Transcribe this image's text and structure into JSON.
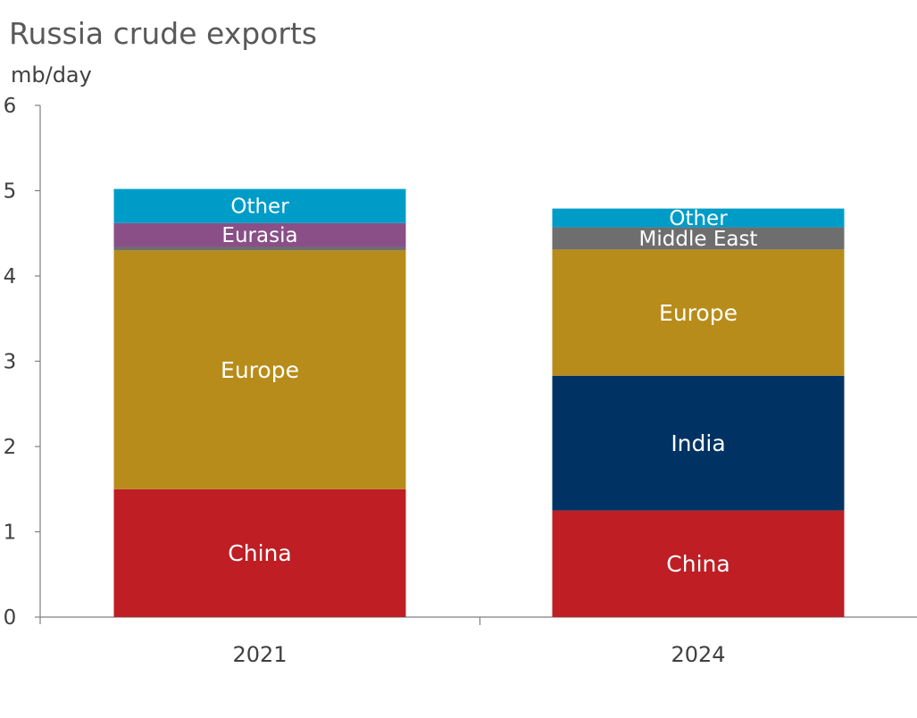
{
  "chart_data": {
    "type": "bar",
    "stacked": true,
    "title": "Russia crude exports",
    "ylabel": "mb/day",
    "xlabel": "",
    "ylim": [
      0,
      6
    ],
    "yticks": [
      0,
      1,
      2,
      3,
      4,
      5,
      6
    ],
    "grid": false,
    "legend": "none",
    "categories": [
      "2021",
      "2024"
    ],
    "bars": [
      {
        "category": "2021",
        "segments": [
          {
            "label": "China",
            "value": 1.5,
            "color": "#be1e24"
          },
          {
            "label": "Europe",
            "value": 2.8,
            "color": "#b88c1a"
          },
          {
            "label": "",
            "value": 0.04,
            "color": "#6e6e6e"
          },
          {
            "label": "Eurasia",
            "value": 0.28,
            "color": "#894f86"
          },
          {
            "label": "Other",
            "value": 0.4,
            "color": "#009cc8"
          }
        ]
      },
      {
        "category": "2024",
        "segments": [
          {
            "label": "China",
            "value": 1.25,
            "color": "#be1e24"
          },
          {
            "label": "India",
            "value": 1.58,
            "color": "#003363"
          },
          {
            "label": "Europe",
            "value": 1.48,
            "color": "#b88c1a"
          },
          {
            "label": "Middle East",
            "value": 0.26,
            "color": "#6e6e6e"
          },
          {
            "label": "Other",
            "value": 0.22,
            "color": "#009cc8"
          }
        ]
      }
    ]
  }
}
